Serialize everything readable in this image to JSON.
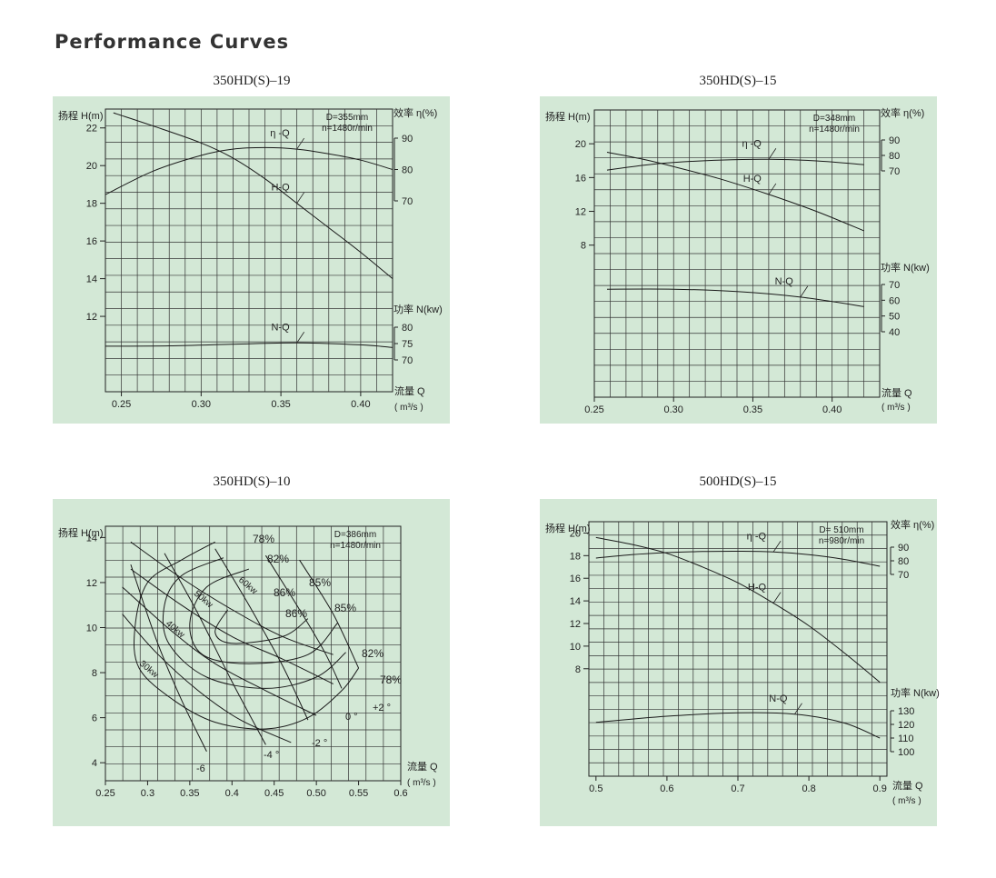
{
  "page_title": "Performance Curves",
  "chart_data": [
    {
      "type": "line",
      "title": "350HD(S)–19",
      "xlabel": [
        "流量 Q",
        "( m³/s )"
      ],
      "ylabel": "扬程 H(m)",
      "y2label": "效率 η(%)",
      "y3label": "功率 N(kw)",
      "xlim": [
        0.24,
        0.42
      ],
      "ylim": [
        8,
        23
      ],
      "xticks": [
        "0.25",
        "0.30",
        "0.35",
        "0.40"
      ],
      "yticks": [
        "12",
        "14",
        "16",
        "18",
        "20",
        "22"
      ],
      "eff_ticks": [
        "70",
        "80",
        "90"
      ],
      "power_ticks": [
        "70",
        "75",
        "80"
      ],
      "info": [
        "D=355mm",
        "n=1480r/min"
      ],
      "series": [
        {
          "name": "H-Q",
          "x": [
            0.245,
            0.27,
            0.3,
            0.32,
            0.34,
            0.36,
            0.38,
            0.4,
            0.42
          ],
          "y": [
            22.8,
            22.1,
            21.2,
            20.4,
            19.3,
            18.0,
            16.7,
            15.4,
            14.0
          ]
        },
        {
          "name": "η -Q",
          "x": [
            0.24,
            0.27,
            0.3,
            0.32,
            0.34,
            0.36,
            0.38,
            0.4,
            0.42
          ],
          "y": [
            72,
            79.5,
            84.5,
            86.5,
            87,
            86.5,
            85,
            83,
            80
          ],
          "unit": "eff"
        },
        {
          "name": "N-Q",
          "x": [
            0.24,
            0.28,
            0.32,
            0.36,
            0.4,
            0.42
          ],
          "y": [
            74.2,
            74.3,
            74.8,
            75.2,
            74.6,
            73.8
          ],
          "unit": "power"
        }
      ]
    },
    {
      "type": "line",
      "title": "350HD(S)–15",
      "xlabel": [
        "流量 Q",
        "( m³/s )"
      ],
      "ylabel": "扬程 H(m)",
      "y2label": "效率 η(%)",
      "y3label": "功率 N(kw)",
      "xlim": [
        0.25,
        0.43
      ],
      "ylim": [
        -10,
        24
      ],
      "xticks": [
        "0.25",
        "0.30",
        "0.35",
        "0.40"
      ],
      "yticks": [
        "8",
        "12",
        "16",
        "20"
      ],
      "eff_ticks": [
        "70",
        "80",
        "90"
      ],
      "power_ticks": [
        "40",
        "50",
        "60",
        "70"
      ],
      "info": [
        "D=348mm",
        "n=1480r/min"
      ],
      "series": [
        {
          "name": "H-Q",
          "x": [
            0.258,
            0.28,
            0.3,
            0.33,
            0.36,
            0.39,
            0.42
          ],
          "y": [
            19.0,
            18.2,
            17.3,
            15.8,
            14.0,
            12.0,
            9.7
          ]
        },
        {
          "name": "η -Q",
          "x": [
            0.258,
            0.28,
            0.3,
            0.33,
            0.36,
            0.39,
            0.42
          ],
          "y": [
            70.5,
            73.5,
            75.5,
            77,
            77.5,
            76.5,
            74
          ],
          "unit": "eff"
        },
        {
          "name": "N-Q",
          "x": [
            0.258,
            0.3,
            0.34,
            0.38,
            0.42
          ],
          "y": [
            67,
            67,
            65.5,
            62,
            56
          ],
          "unit": "power"
        }
      ]
    },
    {
      "type": "line",
      "title": "350HD(S)–10",
      "xlabel": [
        "流量 Q",
        "( m³/s )"
      ],
      "ylabel": "扬程 H(m)",
      "xlim": [
        0.25,
        0.6
      ],
      "ylim": [
        3.2,
        14.5
      ],
      "xticks": [
        "0.25",
        "0.3",
        "0.35",
        "0.4",
        "0.45",
        "0.50",
        "0.55",
        "0.6"
      ],
      "yticks": [
        "4",
        "6",
        "8",
        "10",
        "12",
        "14"
      ],
      "info": [
        "D=386mm",
        "n=1480r/min"
      ],
      "efficiency_labels": [
        "78%",
        "82%",
        "85%",
        "86%",
        "86%",
        "85%",
        "82%",
        "78%"
      ],
      "power_labels": [
        "60kw",
        "50kw",
        "40kw",
        "30kw"
      ],
      "angle_labels": [
        "-6",
        "-4 °",
        "-2 °",
        "0 °",
        "+2 °"
      ],
      "series": [
        {
          "name": "78%",
          "x": [
            0.38,
            0.34,
            0.3,
            0.285,
            0.29,
            0.33,
            0.38,
            0.44,
            0.49,
            0.53,
            0.55
          ],
          "y": [
            13.8,
            13.0,
            12.0,
            10.0,
            8.2,
            6.8,
            5.8,
            5.5,
            6.0,
            7.2,
            8.2
          ]
        },
        {
          "name": "82%",
          "x": [
            0.39,
            0.34,
            0.32,
            0.325,
            0.37,
            0.44,
            0.5,
            0.535
          ],
          "y": [
            13.1,
            12.3,
            11.0,
            9.3,
            7.8,
            7.3,
            7.8,
            8.9
          ]
        },
        {
          "name": "85%",
          "x": [
            0.42,
            0.37,
            0.35,
            0.365,
            0.42,
            0.49,
            0.525
          ],
          "y": [
            12.6,
            11.8,
            10.2,
            8.8,
            8.4,
            8.8,
            10.2
          ]
        },
        {
          "name": "86%",
          "x": [
            0.395,
            0.38,
            0.4,
            0.46,
            0.49
          ],
          "y": [
            10.8,
            9.8,
            9.3,
            9.6,
            10.4
          ]
        },
        {
          "name": "60kw",
          "x": [
            0.28,
            0.34,
            0.4,
            0.46,
            0.52
          ],
          "y": [
            13.8,
            12.2,
            10.8,
            9.6,
            8.8
          ]
        },
        {
          "name": "50kw",
          "x": [
            0.28,
            0.34,
            0.4,
            0.46,
            0.52
          ],
          "y": [
            12.6,
            11.0,
            9.6,
            8.6,
            7.5
          ]
        },
        {
          "name": "40kw",
          "x": [
            0.27,
            0.33,
            0.38,
            0.44,
            0.5
          ],
          "y": [
            11.8,
            9.8,
            8.4,
            7.2,
            6.1
          ]
        },
        {
          "name": "30kw",
          "x": [
            0.27,
            0.31,
            0.36,
            0.41,
            0.47
          ],
          "y": [
            10.6,
            8.9,
            7.2,
            5.9,
            4.9
          ]
        },
        {
          "name": "-6",
          "x": [
            0.28,
            0.31,
            0.34,
            0.37
          ],
          "y": [
            12.8,
            9.5,
            6.8,
            4.5
          ]
        },
        {
          "name": "-4",
          "x": [
            0.32,
            0.36,
            0.4,
            0.44
          ],
          "y": [
            13.3,
            10.6,
            7.6,
            4.8
          ]
        },
        {
          "name": "-2",
          "x": [
            0.38,
            0.42,
            0.46,
            0.49
          ],
          "y": [
            13.5,
            11.0,
            8.3,
            5.9
          ]
        },
        {
          "name": "0",
          "x": [
            0.44,
            0.48,
            0.51,
            0.53
          ],
          "y": [
            13.2,
            10.8,
            8.9,
            7.3
          ]
        },
        {
          "name": "+2",
          "x": [
            0.48,
            0.52,
            0.55
          ],
          "y": [
            13.0,
            10.6,
            8.2
          ]
        }
      ]
    },
    {
      "type": "line",
      "title": "500HD(S)–15",
      "xlabel": [
        "流量 Q",
        "( m³/s )"
      ],
      "ylabel": "扬程 H(m)",
      "y2label": "效率 η(%)",
      "y3label": "功率 N(kw)",
      "xlim": [
        0.49,
        0.91
      ],
      "ylim": [
        -1.5,
        21
      ],
      "xticks": [
        "0.5",
        "0.6",
        "0.7",
        "0.8",
        "0.9"
      ],
      "yticks": [
        "8",
        "10",
        "12",
        "14",
        "16",
        "18",
        "20"
      ],
      "eff_ticks": [
        "70",
        "80",
        "90"
      ],
      "power_ticks": [
        "100",
        "110",
        "120",
        "130"
      ],
      "info": [
        "D= 510mm",
        "n=980r/min"
      ],
      "series": [
        {
          "name": "H-Q",
          "x": [
            0.5,
            0.55,
            0.6,
            0.65,
            0.7,
            0.75,
            0.8,
            0.85,
            0.9
          ],
          "y": [
            19.6,
            19.0,
            18.2,
            17.0,
            15.6,
            13.8,
            11.8,
            9.4,
            6.8
          ]
        },
        {
          "name": "η -Q",
          "x": [
            0.5,
            0.55,
            0.6,
            0.65,
            0.7,
            0.75,
            0.8,
            0.85,
            0.9
          ],
          "y": [
            82,
            84.5,
            86,
            86.8,
            87,
            86.5,
            84.5,
            81,
            76
          ],
          "unit": "eff"
        },
        {
          "name": "N-Q",
          "x": [
            0.5,
            0.6,
            0.7,
            0.78,
            0.85,
            0.9
          ],
          "y": [
            121.5,
            126,
            128.5,
            127.5,
            121,
            110
          ],
          "unit": "power"
        }
      ]
    }
  ]
}
